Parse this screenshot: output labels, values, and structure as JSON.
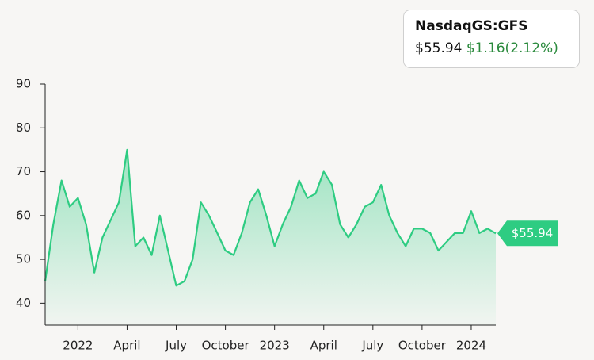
{
  "chart_data": {
    "type": "line",
    "ticker": "NasdaqGS:GFS",
    "price": "$55.94",
    "change": "$1.16(2.12%)",
    "categories": [
      null,
      null,
      null,
      null,
      "2022",
      null,
      null,
      null,
      null,
      null,
      "April",
      null,
      null,
      null,
      null,
      null,
      "July",
      null,
      null,
      null,
      null,
      null,
      "October",
      null,
      null,
      null,
      null,
      null,
      "2023",
      null,
      null,
      null,
      null,
      null,
      "April",
      null,
      null,
      null,
      null,
      null,
      "July",
      null,
      null,
      null,
      null,
      null,
      "October",
      null,
      null,
      null,
      null,
      null,
      "2024",
      null,
      null,
      null
    ],
    "series": [
      {
        "color": "#2ecc82",
        "values": [
          45,
          58,
          68,
          62,
          64,
          58,
          47,
          55,
          59,
          63,
          75,
          53,
          55,
          51,
          60,
          52,
          44,
          45,
          50,
          63,
          60,
          56,
          52,
          51,
          56,
          63,
          66,
          60,
          53,
          58,
          62,
          68,
          64,
          65,
          70,
          67,
          58,
          55,
          58,
          62,
          63,
          67,
          60,
          56,
          53,
          57,
          57,
          56,
          52,
          54,
          56,
          56,
          61,
          56,
          57,
          55.94
        ]
      }
    ],
    "ylim": [
      35,
      90
    ],
    "yticks": [
      40,
      50,
      60,
      70,
      80,
      90
    ]
  }
}
